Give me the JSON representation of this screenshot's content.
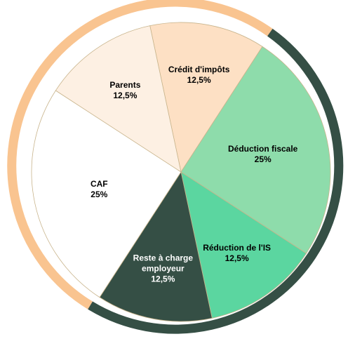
{
  "chart_data": {
    "type": "pie",
    "categories": [
      "Crédit d'impôts",
      "Déduction fiscale",
      "Réduction de l'IS",
      "Reste à charge employeur",
      "CAF",
      "Parents"
    ],
    "values": [
      12.5,
      25,
      12.5,
      12.5,
      25,
      12.5
    ],
    "value_labels": [
      "12,5%",
      "25%",
      "12,5%",
      "12,5%",
      "25%",
      "12,5%"
    ],
    "colors": [
      "#fde0c4",
      "#8edcab",
      "#5bd6a0",
      "#354f45",
      "#ffffff",
      "#fdf0e3"
    ],
    "label_colors": [
      "#000000",
      "#000000",
      "#000000",
      "#ffffff",
      "#000000",
      "#000000"
    ]
  }
}
